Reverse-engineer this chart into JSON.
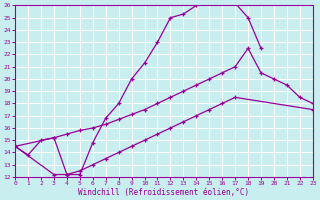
{
  "xlabel": "Windchill (Refroidissement éolien,°C)",
  "bg_color": "#c8eef0",
  "grid_color": "#ffffff",
  "line_color": "#990099",
  "xmin": 0,
  "xmax": 23,
  "ymin": 12,
  "ymax": 26,
  "curve1_x": [
    0,
    1,
    2,
    3,
    4,
    5,
    6,
    7,
    8,
    9,
    10,
    11,
    12,
    13,
    14,
    15,
    16,
    17,
    18,
    19
  ],
  "curve1_y": [
    14.5,
    13.8,
    15.0,
    15.2,
    12.2,
    12.2,
    14.8,
    16.8,
    18.0,
    20.0,
    21.3,
    23.0,
    25.0,
    25.3,
    26.0,
    26.2,
    26.2,
    26.2,
    25.0,
    22.5
  ],
  "curve2_x": [
    0,
    3,
    4,
    5,
    6,
    7,
    8,
    9,
    10,
    11,
    12,
    13,
    14,
    15,
    16,
    17,
    18,
    19,
    20,
    21,
    22,
    23
  ],
  "curve2_y": [
    14.5,
    15.2,
    15.5,
    15.8,
    16.0,
    16.3,
    16.7,
    17.1,
    17.5,
    18.0,
    18.5,
    19.0,
    19.5,
    20.0,
    20.5,
    21.0,
    22.5,
    20.5,
    20.0,
    19.5,
    18.5,
    18.0
  ],
  "curve3_x": [
    0,
    3,
    4,
    5,
    6,
    7,
    8,
    9,
    10,
    11,
    12,
    13,
    14,
    15,
    16,
    17,
    23
  ],
  "curve3_y": [
    14.5,
    12.2,
    12.2,
    12.5,
    13.0,
    13.5,
    14.0,
    14.5,
    15.0,
    15.5,
    16.0,
    16.5,
    17.0,
    17.5,
    18.0,
    18.5,
    17.5
  ]
}
